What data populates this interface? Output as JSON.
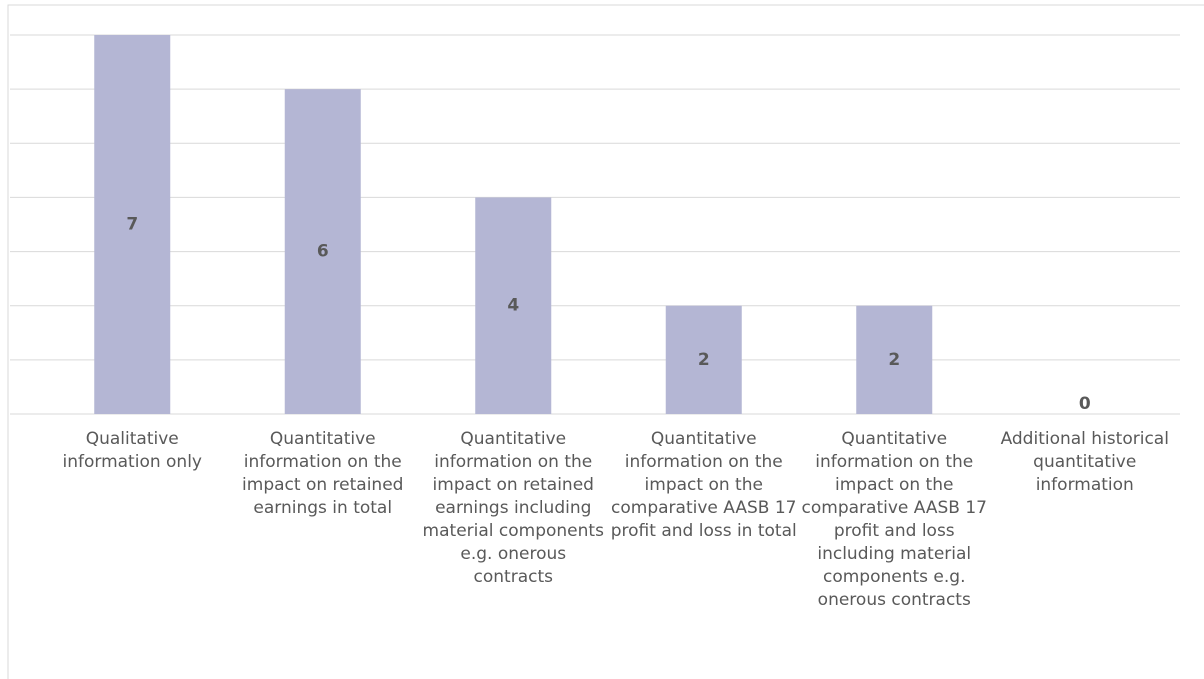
{
  "chart_data": {
    "type": "bar",
    "categories": [
      "Qualitative information only",
      "Quantitative information on the impact on retained earnings in total",
      "Quantitative information on the impact on retained earnings including material components e.g. onerous contracts",
      "Quantitative information on the impact on the comparative AASB 17 profit and loss in total",
      "Quantitative information on the impact on the comparative AASB 17 profit and loss including material components e.g. onerous contracts",
      "Additional historical quantitative information"
    ],
    "values": [
      7,
      6,
      4,
      2,
      2,
      0
    ],
    "color": "#b4b6d4",
    "ylim": [
      0,
      7
    ],
    "yticks": [
      0,
      1,
      2,
      3,
      4,
      5,
      6,
      7
    ],
    "grid": true
  }
}
